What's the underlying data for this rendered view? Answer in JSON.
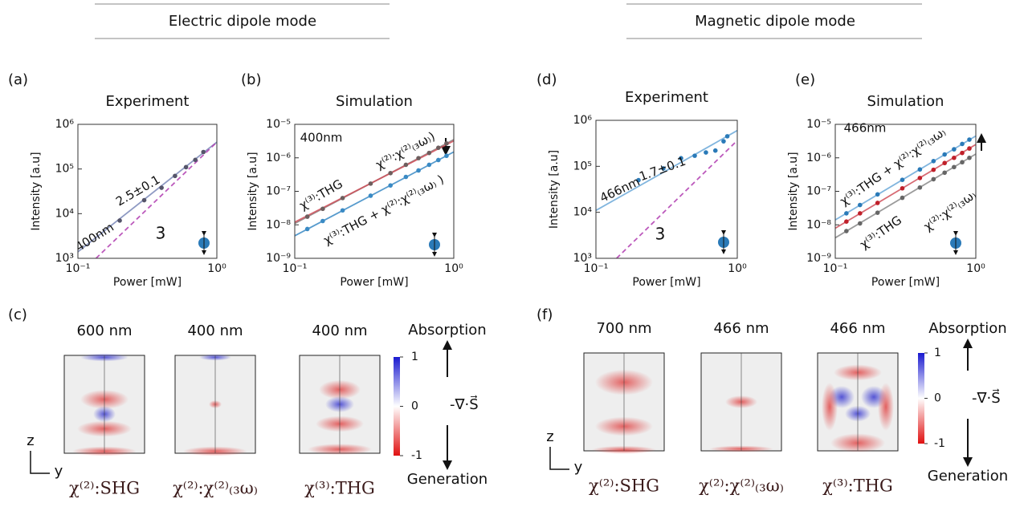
{
  "sections": [
    {
      "title": "Electric dipole mode"
    },
    {
      "title": "Magnetic dipole mode"
    }
  ],
  "panel_labels": [
    "(a)",
    "(b)",
    "(c)",
    "(d)",
    "(e)",
    "(f)"
  ],
  "chart_data": [
    {
      "type": "line",
      "title": "Experiment",
      "xlabel": "Power [mW]",
      "ylabel": "Intensity [a.u]",
      "xscale": "log",
      "yscale": "log",
      "xlim": [
        0.1,
        1
      ],
      "ylim": [
        1000,
        1000000
      ],
      "xticks": [
        {
          "value": 0.1,
          "label": "10⁻¹"
        },
        {
          "value": 1,
          "label": "10⁰"
        }
      ],
      "yticks": [
        {
          "value": 1000,
          "label": "10³"
        },
        {
          "value": 10000,
          "label": "10⁴"
        },
        {
          "value": 100000,
          "label": "10⁵"
        },
        {
          "value": 1000000,
          "label": "10⁶"
        }
      ],
      "series": [
        {
          "style": "line",
          "color": "#7a88b8",
          "x": [
            0.1,
            1
          ],
          "values": [
            1400,
            400000
          ]
        },
        {
          "style": "dashed",
          "color": "#b03cb0",
          "x": [
            0.135,
            1
          ],
          "values": [
            1000,
            400000
          ]
        },
        {
          "style": "markers",
          "color": "#55556a",
          "x": [
            0.2,
            0.3,
            0.4,
            0.5,
            0.6,
            0.7,
            0.8
          ],
          "values": [
            7000,
            20000,
            38000,
            70000,
            110000,
            160000,
            240000
          ]
        }
      ],
      "annotations": [
        {
          "text": "400nm",
          "color": "#5a5a9a"
        },
        {
          "text": "2.5±0.1",
          "color": "#111111"
        },
        {
          "text": "3",
          "color": "#111111"
        }
      ]
    },
    {
      "type": "line",
      "title": "Simulation",
      "xlabel": "Power [mW]",
      "ylabel": "Intensity [a.u]",
      "xscale": "log",
      "yscale": "log",
      "xlim": [
        0.1,
        1
      ],
      "ylim": [
        1e-09,
        1e-05
      ],
      "xticks": [
        {
          "value": 0.1,
          "label": "10⁻¹"
        },
        {
          "value": 1,
          "label": "10⁰"
        }
      ],
      "yticks": [
        {
          "value": 1e-09,
          "label": "10⁻⁹"
        },
        {
          "value": 1e-08,
          "label": "10⁻⁸"
        },
        {
          "value": 1e-07,
          "label": "10⁻⁷"
        },
        {
          "value": 1e-06,
          "label": "10⁻⁶"
        },
        {
          "value": 1e-05,
          "label": "10⁻⁵"
        }
      ],
      "series": [
        {
          "style": "line",
          "color": "#8a7a7a",
          "x": [
            0.1,
            1
          ],
          "values": [
            1.1e-08,
            3.5e-06
          ]
        },
        {
          "style": "line",
          "color": "#d0505a",
          "x": [
            0.1,
            1
          ],
          "values": [
            1.2e-08,
            3.2e-06
          ]
        },
        {
          "style": "line",
          "color": "#3a8ac4",
          "x": [
            0.1,
            1
          ],
          "values": [
            4.7e-09,
            1.5e-06
          ]
        },
        {
          "style": "markers",
          "color": "#6e5e5e",
          "x": [
            0.12,
            0.15,
            0.2,
            0.3,
            0.4,
            0.5,
            0.6,
            0.7,
            0.8,
            0.9
          ],
          "values": [
            1.75e-08,
            3e-08,
            6.3e-08,
            1.7e-07,
            3.5e-07,
            6.2e-07,
            9.8e-07,
            1.4e-06,
            2e-06,
            2.7e-06
          ]
        },
        {
          "style": "markers",
          "color": "#3a8ac4",
          "x": [
            0.12,
            0.15,
            0.2,
            0.3,
            0.4,
            0.5,
            0.6,
            0.7,
            0.8,
            0.9
          ],
          "values": [
            7.5e-09,
            1.3e-08,
            2.7e-08,
            7.4e-08,
            1.5e-07,
            2.7e-07,
            4.2e-07,
            6.2e-07,
            8.6e-07,
            1.15e-06
          ]
        }
      ],
      "annotations": [
        {
          "text": "400nm",
          "color": "#5a5a9a"
        },
        {
          "text": "χ⁽²⁾:χ⁽²⁾₍₃ω₎)",
          "color": "#777777"
        },
        {
          "text": "χ⁽³⁾:THG",
          "color": "#c0202a"
        },
        {
          "text": "χ⁽³⁾:THG + χ⁽²⁾:χ⁽²⁾₍₃ω₎ )",
          "color": "#3a8ac4"
        }
      ]
    },
    {
      "type": "line",
      "title": "Experiment",
      "xlabel": "Power [mW]",
      "ylabel": "Intensity [a.u]",
      "xscale": "log",
      "yscale": "log",
      "xlim": [
        0.1,
        1
      ],
      "ylim": [
        1000,
        1000000
      ],
      "xticks": [
        {
          "value": 0.1,
          "label": "10⁻¹"
        },
        {
          "value": 1,
          "label": "10⁰"
        }
      ],
      "yticks": [
        {
          "value": 1000,
          "label": "10³"
        },
        {
          "value": 10000,
          "label": "10⁴"
        },
        {
          "value": 100000,
          "label": "10⁵"
        },
        {
          "value": 1000000,
          "label": "10⁶"
        }
      ],
      "series": [
        {
          "style": "line",
          "color": "#6aa8d8",
          "x": [
            0.1,
            1
          ],
          "values": [
            11000,
            600000
          ]
        },
        {
          "style": "dashed",
          "color": "#b03cb0",
          "x": [
            0.14,
            1
          ],
          "values": [
            1000,
            365000
          ]
        },
        {
          "style": "markers",
          "color": "#2a7ab8",
          "x": [
            0.2,
            0.3,
            0.4,
            0.5,
            0.6,
            0.7,
            0.8,
            0.85
          ],
          "values": [
            50000,
            90000,
            150000,
            170000,
            200000,
            220000,
            350000,
            450000
          ]
        }
      ],
      "annotations": [
        {
          "text": "466nm",
          "color": "#3a8ac4"
        },
        {
          "text": "1.7±0.1",
          "color": "#111111"
        },
        {
          "text": "3",
          "color": "#111111"
        }
      ]
    },
    {
      "type": "line",
      "title": "Simulation",
      "xlabel": "Power [mW]",
      "ylabel": "Intensity [a.u]",
      "xscale": "log",
      "yscale": "log",
      "xlim": [
        0.1,
        1
      ],
      "ylim": [
        1e-09,
        1e-05
      ],
      "xticks": [
        {
          "value": 0.1,
          "label": "10⁻¹"
        },
        {
          "value": 1,
          "label": "10⁰"
        }
      ],
      "yticks": [
        {
          "value": 1e-09,
          "label": "10⁻⁹"
        },
        {
          "value": 1e-08,
          "label": "10⁻⁸"
        },
        {
          "value": 1e-07,
          "label": "10⁻⁷"
        },
        {
          "value": 1e-06,
          "label": "10⁻⁶"
        },
        {
          "value": 1e-05,
          "label": "10⁻⁵"
        }
      ],
      "series": [
        {
          "style": "line",
          "color": "#6aa8d8",
          "x": [
            0.1,
            1
          ],
          "values": [
            1.4e-08,
            4.5e-06
          ]
        },
        {
          "style": "line",
          "color": "#d0505a",
          "x": [
            0.1,
            1
          ],
          "values": [
            7.9e-09,
            2.5e-06
          ]
        },
        {
          "style": "line",
          "color": "#8a8a8a",
          "x": [
            0.1,
            1
          ],
          "values": [
            4.1e-09,
            1.3e-06
          ]
        },
        {
          "style": "markers",
          "color": "#2a7ab8",
          "x": [
            0.12,
            0.15,
            0.2,
            0.3,
            0.4,
            0.5,
            0.6,
            0.7,
            0.8,
            0.9
          ],
          "values": [
            2.2e-08,
            3.9e-08,
            8.1e-08,
            2.2e-07,
            4.5e-07,
            8e-07,
            1.26e-06,
            1.8e-06,
            2.6e-06,
            3.5e-06
          ]
        },
        {
          "style": "markers",
          "color": "#c0202a",
          "x": [
            0.12,
            0.15,
            0.2,
            0.3,
            0.4,
            0.5,
            0.6,
            0.7,
            0.8,
            0.9
          ],
          "values": [
            1.25e-08,
            2.2e-08,
            4.5e-08,
            1.23e-07,
            2.5e-07,
            4.4e-07,
            7e-07,
            1e-06,
            1.4e-06,
            1.9e-06
          ]
        },
        {
          "style": "markers",
          "color": "#666666",
          "x": [
            0.12,
            0.15,
            0.2,
            0.3,
            0.4,
            0.5,
            0.6,
            0.7,
            0.8,
            0.9
          ],
          "values": [
            6.5e-09,
            1.1e-08,
            2.3e-08,
            6.4e-08,
            1.3e-07,
            2.3e-07,
            3.6e-07,
            5.3e-07,
            7.4e-07,
            1e-06
          ]
        }
      ],
      "annotations": [
        {
          "text": "466nm",
          "color": "#3a8ac4"
        },
        {
          "text": "χ⁽³⁾:THG + χ⁽²⁾:χ⁽²⁾₍₃ω₎",
          "color": "#3a8ac4"
        },
        {
          "text": "χ⁽²⁾:χ⁽²⁾₍₃ω₎",
          "color": "#777777"
        },
        {
          "text": "χ⁽³⁾:THG",
          "color": "#c0202a"
        }
      ]
    }
  ],
  "field_maps": [
    {
      "maps": [
        {
          "wavelength": "600 nm",
          "label": "χ⁽²⁾:SHG"
        },
        {
          "wavelength": "400 nm",
          "label": "χ⁽²⁾:χ⁽²⁾₍₃ω₎"
        },
        {
          "wavelength": "400 nm",
          "label": "χ⁽³⁾:THG"
        }
      ],
      "colorbar_ticks": [
        1,
        0,
        -1
      ],
      "quantity": "-∇·S⃗",
      "top": "Absorption",
      "bottom": "Generation",
      "axis_z": "z",
      "axis_y": "y"
    },
    {
      "maps": [
        {
          "wavelength": "700 nm",
          "label": "χ⁽²⁾:SHG"
        },
        {
          "wavelength": "466 nm",
          "label": "χ⁽²⁾:χ⁽²⁾₍₃ω₎"
        },
        {
          "wavelength": "466 nm",
          "label": "χ⁽³⁾:THG"
        }
      ],
      "colorbar_ticks": [
        1,
        0,
        -1
      ],
      "quantity": "-∇·S⃗",
      "top": "Absorption",
      "bottom": "Generation",
      "axis_z": "z",
      "axis_y": "y"
    }
  ]
}
